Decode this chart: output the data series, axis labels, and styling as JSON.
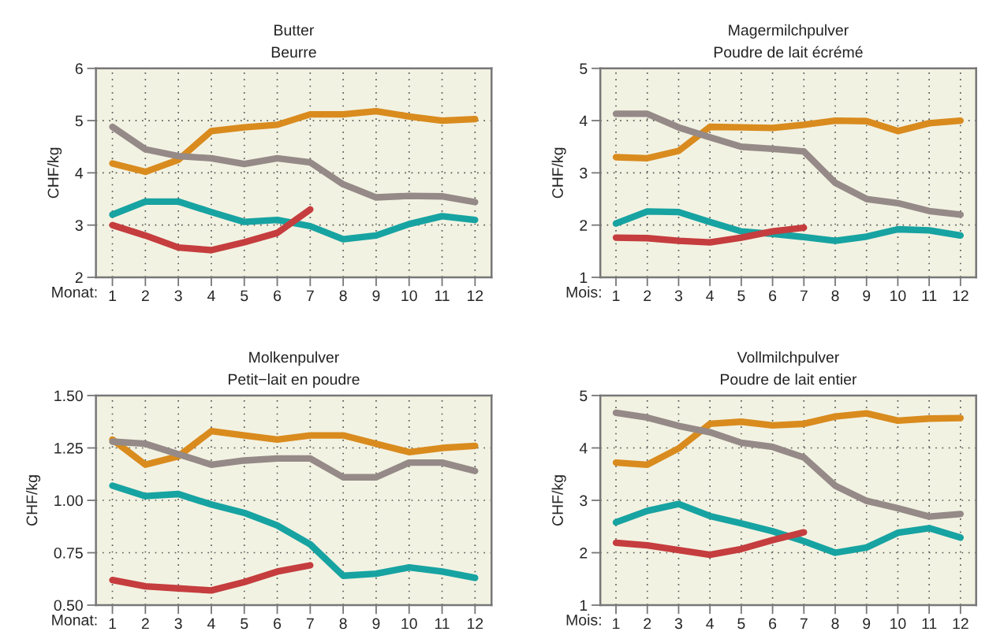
{
  "chart_data": [
    {
      "type": "line",
      "title": "Butter\nBeurre",
      "xlabel": "Monat:",
      "ylabel": "CHF/kg",
      "x": [
        1,
        2,
        3,
        4,
        5,
        6,
        7,
        8,
        9,
        10,
        11,
        12
      ],
      "xlim": [
        0.5,
        12.5
      ],
      "xticks": [
        1,
        2,
        3,
        4,
        5,
        6,
        7,
        8,
        9,
        10,
        11,
        12
      ],
      "ylim": [
        2,
        6
      ],
      "yticks": [
        2,
        3,
        4,
        5,
        6
      ],
      "grid": true,
      "legend": false,
      "line_style": "solid",
      "series": [
        {
          "color": "#d98b1e",
          "values": [
            4.18,
            4.02,
            4.25,
            4.8,
            4.87,
            4.92,
            5.12,
            5.12,
            5.18,
            5.08,
            5.0,
            5.03
          ]
        },
        {
          "color": "#958a87",
          "values": [
            4.88,
            4.45,
            4.32,
            4.28,
            4.17,
            4.28,
            4.2,
            3.78,
            3.53,
            3.56,
            3.55,
            3.44
          ]
        },
        {
          "color": "#17a3a1",
          "values": [
            3.2,
            3.45,
            3.45,
            3.25,
            3.06,
            3.1,
            2.98,
            2.73,
            2.8,
            3.02,
            3.17,
            3.1
          ]
        },
        {
          "color": "#c53d3e",
          "values": [
            3.0,
            2.8,
            2.57,
            2.52,
            2.67,
            2.85,
            3.3,
            null,
            null,
            null,
            null,
            null
          ]
        }
      ]
    },
    {
      "type": "line",
      "title": "Magermilchpulver\nPoudre de lait écrémé",
      "xlabel": "Mois:",
      "ylabel": "CHF/kg",
      "x": [
        1,
        2,
        3,
        4,
        5,
        6,
        7,
        8,
        9,
        10,
        11,
        12
      ],
      "xlim": [
        0.5,
        12.5
      ],
      "xticks": [
        1,
        2,
        3,
        4,
        5,
        6,
        7,
        8,
        9,
        10,
        11,
        12
      ],
      "ylim": [
        1,
        5
      ],
      "yticks": [
        1,
        2,
        3,
        4,
        5
      ],
      "grid": true,
      "legend": false,
      "line_style": "solid",
      "series": [
        {
          "color": "#d98b1e",
          "values": [
            3.3,
            3.28,
            3.42,
            3.88,
            3.87,
            3.86,
            3.92,
            4.0,
            3.99,
            3.8,
            3.95,
            4.0
          ]
        },
        {
          "color": "#958a87",
          "values": [
            4.13,
            4.13,
            3.87,
            3.68,
            3.5,
            3.46,
            3.41,
            2.81,
            2.5,
            2.42,
            2.27,
            2.2
          ]
        },
        {
          "color": "#17a3a1",
          "values": [
            2.03,
            2.26,
            2.25,
            2.06,
            1.88,
            1.83,
            1.77,
            1.7,
            1.78,
            1.92,
            1.9,
            1.8
          ]
        },
        {
          "color": "#c53d3e",
          "values": [
            1.76,
            1.75,
            1.7,
            1.67,
            1.76,
            1.88,
            1.95,
            null,
            null,
            null,
            null,
            null
          ]
        }
      ]
    },
    {
      "type": "line",
      "title": "Molkenpulver\nPetit−lait en poudre",
      "xlabel": "Monat:",
      "ylabel": "CHF/kg",
      "x": [
        1,
        2,
        3,
        4,
        5,
        6,
        7,
        8,
        9,
        10,
        11,
        12
      ],
      "xlim": [
        0.5,
        12.5
      ],
      "xticks": [
        1,
        2,
        3,
        4,
        5,
        6,
        7,
        8,
        9,
        10,
        11,
        12
      ],
      "ylim": [
        0.5,
        1.5
      ],
      "yticks": [
        {
          "value": 0.5,
          "label": "0.50"
        },
        {
          "value": 0.75,
          "label": "0.75"
        },
        {
          "value": 1.0,
          "label": "1.00"
        },
        {
          "value": 1.25,
          "label": "1.25"
        },
        {
          "value": 1.5,
          "label": "1.50"
        }
      ],
      "grid": true,
      "legend": false,
      "line_style": "solid",
      "series": [
        {
          "color": "#d98b1e",
          "values": [
            1.29,
            1.17,
            1.21,
            1.33,
            1.31,
            1.29,
            1.31,
            1.31,
            1.27,
            1.23,
            1.25,
            1.26
          ]
        },
        {
          "color": "#958a87",
          "values": [
            1.28,
            1.27,
            1.22,
            1.17,
            1.19,
            1.2,
            1.2,
            1.11,
            1.11,
            1.18,
            1.18,
            1.14
          ]
        },
        {
          "color": "#17a3a1",
          "values": [
            1.07,
            1.02,
            1.03,
            0.98,
            0.94,
            0.88,
            0.79,
            0.64,
            0.65,
            0.68,
            0.66,
            0.63
          ]
        },
        {
          "color": "#c53d3e",
          "values": [
            0.62,
            0.59,
            0.58,
            0.57,
            0.61,
            0.66,
            0.69,
            null,
            null,
            null,
            null,
            null
          ]
        }
      ]
    },
    {
      "type": "line",
      "title": "Vollmilchpulver\nPoudre de lait entier",
      "xlabel": "Mois:",
      "ylabel": "CHF/kg",
      "x": [
        1,
        2,
        3,
        4,
        5,
        6,
        7,
        8,
        9,
        10,
        11,
        12
      ],
      "xlim": [
        0.5,
        12.5
      ],
      "xticks": [
        1,
        2,
        3,
        4,
        5,
        6,
        7,
        8,
        9,
        10,
        11,
        12
      ],
      "ylim": [
        1,
        5
      ],
      "yticks": [
        1,
        2,
        3,
        4,
        5
      ],
      "grid": true,
      "legend": false,
      "line_style": "solid",
      "series": [
        {
          "color": "#d98b1e",
          "values": [
            3.72,
            3.68,
            3.99,
            4.46,
            4.5,
            4.43,
            4.46,
            4.6,
            4.66,
            4.52,
            4.56,
            4.57
          ]
        },
        {
          "color": "#958a87",
          "values": [
            4.67,
            4.58,
            4.42,
            4.3,
            4.1,
            4.02,
            3.82,
            3.28,
            2.99,
            2.85,
            2.69,
            2.74
          ]
        },
        {
          "color": "#17a3a1",
          "values": [
            2.58,
            2.8,
            2.93,
            2.7,
            2.56,
            2.41,
            2.22,
            2.0,
            2.1,
            2.38,
            2.47,
            2.29
          ]
        },
        {
          "color": "#c53d3e",
          "values": [
            2.19,
            2.14,
            2.05,
            1.96,
            2.07,
            2.24,
            2.39,
            null,
            null,
            null,
            null,
            null
          ]
        }
      ]
    }
  ]
}
